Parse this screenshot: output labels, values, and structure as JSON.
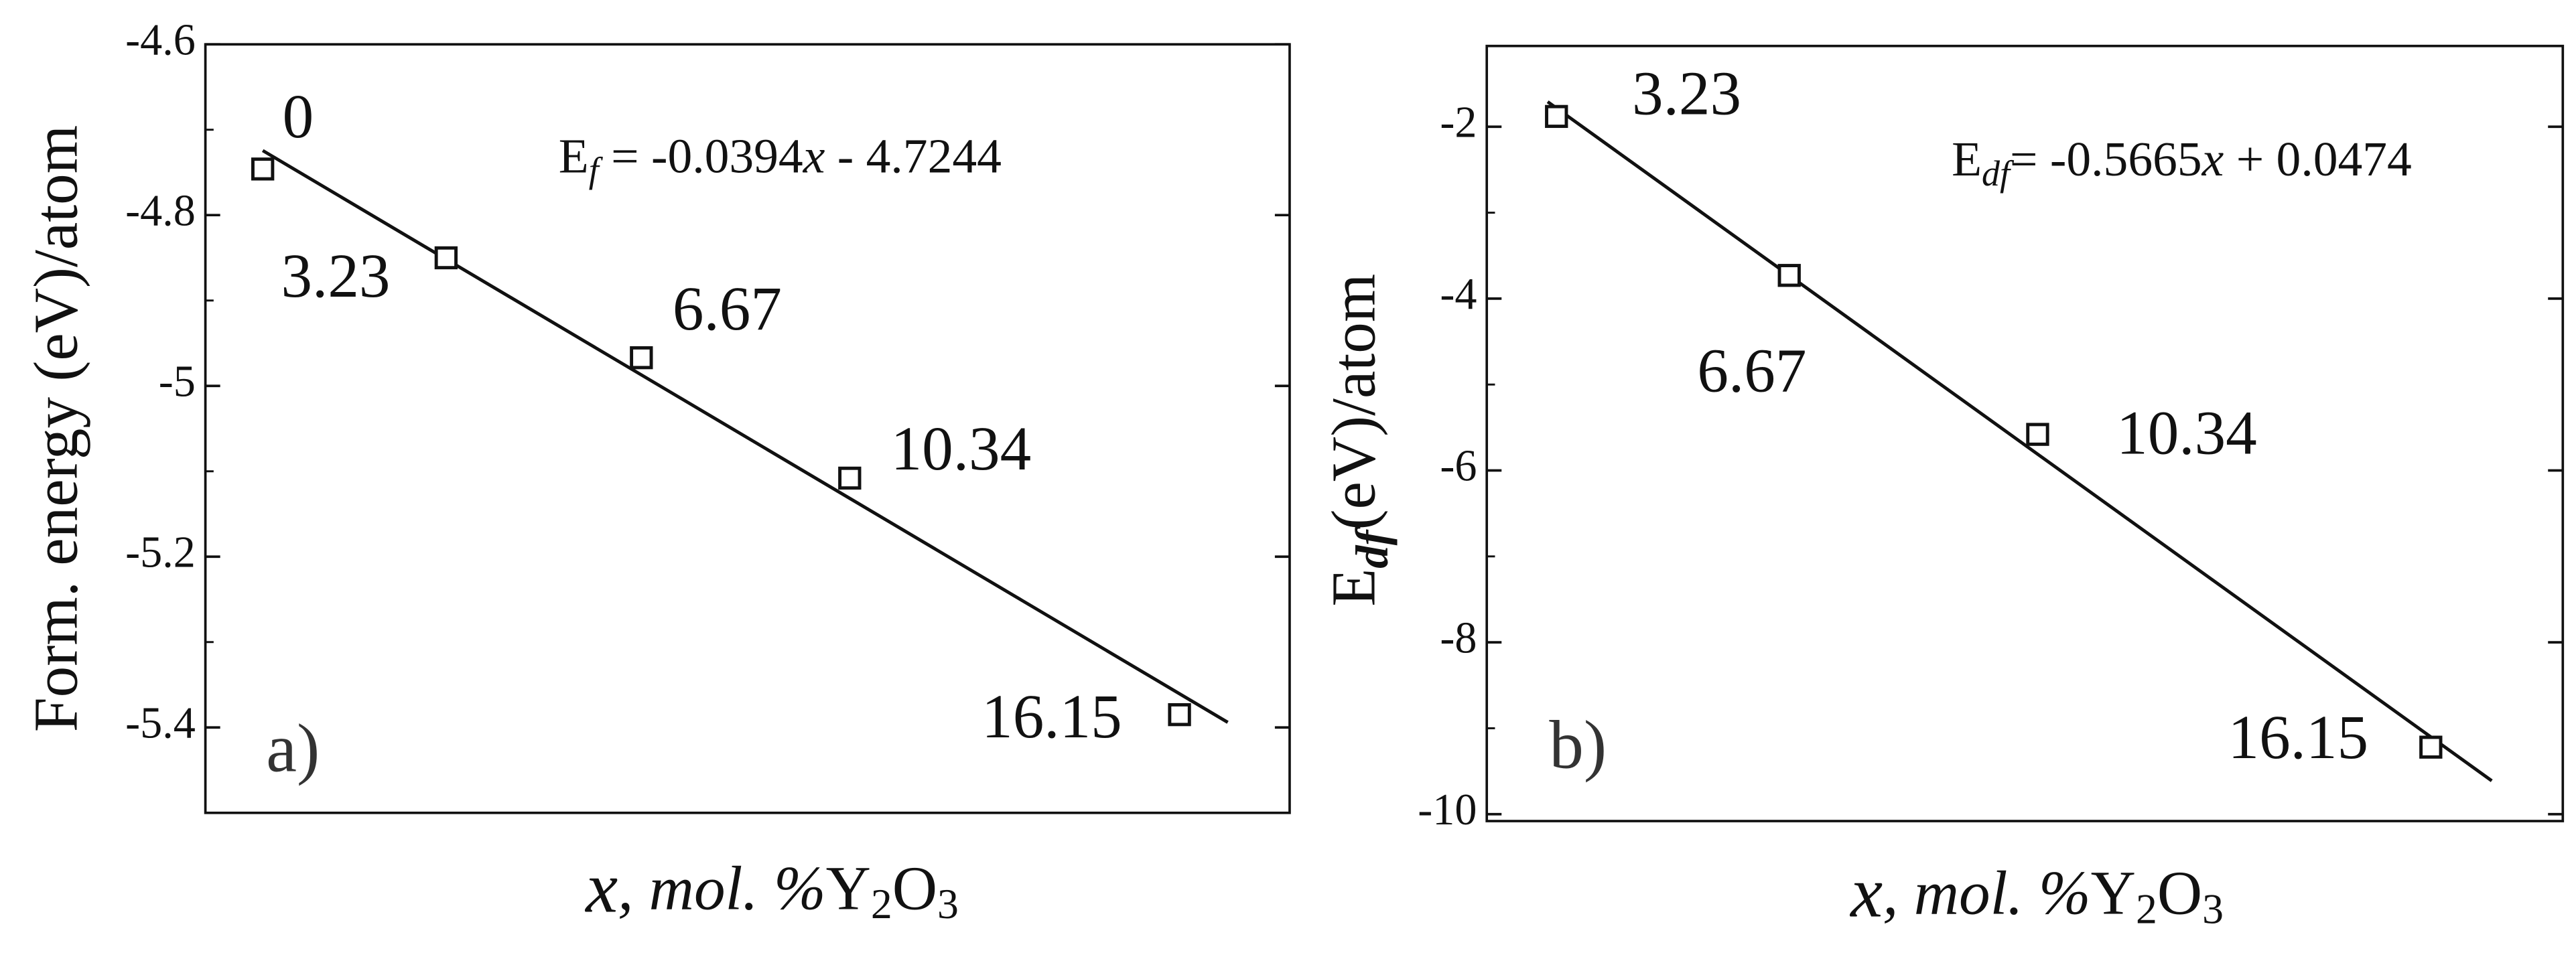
{
  "chart_data": [
    {
      "type": "scatter",
      "panel": "a)",
      "y_label": "Form. energy (eV)/atom",
      "x_label": [
        "x",
        ", mol. %",
        "Y",
        "2",
        "O",
        "3"
      ],
      "equation": [
        "E",
        "f",
        " = -0.0394",
        "x",
        " - 4.7244"
      ],
      "x": [
        0,
        3.23,
        6.67,
        10.34,
        16.15
      ],
      "values": [
        -4.746,
        -4.85,
        -4.967,
        -5.108,
        -5.385
      ],
      "fit_line": {
        "x": [
          0,
          17.0
        ],
        "values": [
          -4.7244,
          -5.394
        ]
      },
      "xlim": [
        -1.01,
        18.09
      ],
      "ylim": [
        -5.5,
        -4.6
      ],
      "yticks": [
        -4.6,
        -4.8,
        -5,
        -5.2,
        -5.4
      ]
    },
    {
      "type": "scatter",
      "panel": "b)",
      "y_label": [
        "E",
        "df",
        "(eV)/atom"
      ],
      "x_label": [
        "x",
        ", mol. %",
        "Y",
        "2",
        "O",
        "3"
      ],
      "equation": [
        "E",
        "df",
        "= -0.5665",
        "x",
        " + 0.0474"
      ],
      "x": [
        3.23,
        6.67,
        10.34,
        16.15
      ],
      "values": [
        -1.88,
        -3.73,
        -5.58,
        -9.22
      ],
      "fit_line": {
        "x": [
          3.1,
          17.05
        ],
        "values": [
          -1.709,
          -9.611
        ]
      },
      "xlim": [
        2.2,
        18.1
      ],
      "ylim": [
        -10.08,
        -1.06
      ],
      "yticks": [
        -2,
        -4,
        -6,
        -8,
        -10
      ]
    }
  ]
}
